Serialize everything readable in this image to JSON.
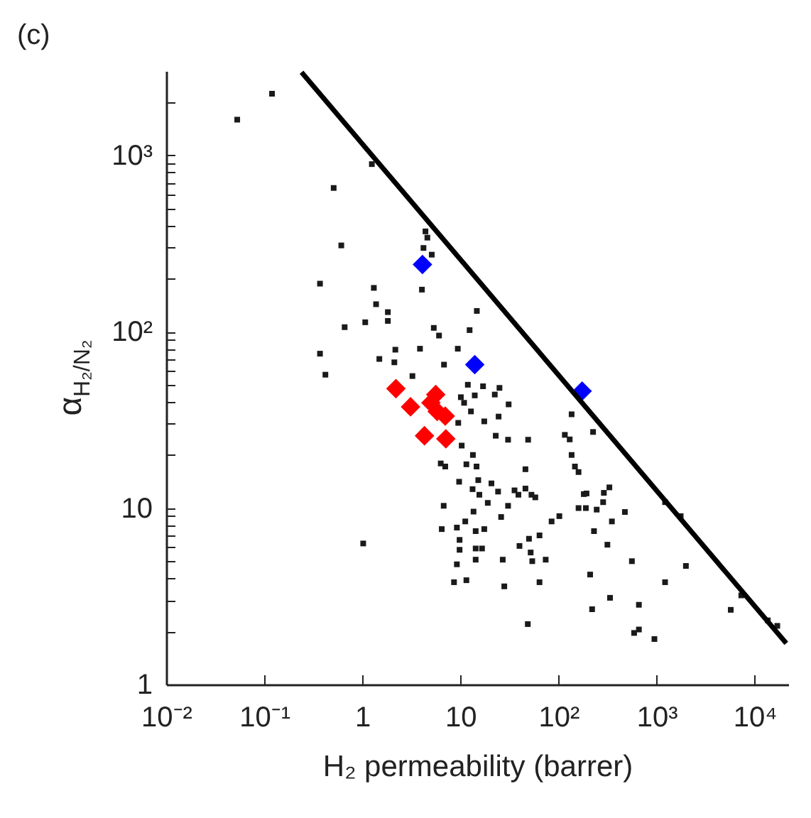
{
  "chart_data": {
    "type": "scatter",
    "title": "(c)",
    "xlabel": "H₂ permeability (barrer)",
    "ylabel": "α$_{H₂/N₂}$",
    "log": "xy",
    "grid": false,
    "xlim": [
      0.01,
      22000
    ],
    "ylim": [
      1,
      3000
    ],
    "xticks": [
      {
        "value": 0.01,
        "label": "10⁻²"
      },
      {
        "value": 0.1,
        "label": "10⁻¹"
      },
      1,
      10,
      {
        "value": 100,
        "label": "10²"
      },
      {
        "value": 1000,
        "label": "10³"
      },
      {
        "value": 10000,
        "label": "10⁴"
      }
    ],
    "yticks": [
      1,
      {
        "value": 2,
        "label": null
      },
      {
        "value": 3,
        "label": null
      },
      {
        "value": 4,
        "label": null
      },
      {
        "value": 5,
        "label": null
      },
      {
        "value": 6,
        "label": null
      },
      {
        "value": 7,
        "label": null
      },
      {
        "value": 8,
        "label": null
      },
      {
        "value": 9,
        "label": null
      },
      10,
      {
        "value": 20,
        "label": null
      },
      {
        "value": 30,
        "label": null
      },
      {
        "value": 40,
        "label": null
      },
      {
        "value": 50,
        "label": null
      },
      {
        "value": 60,
        "label": null
      },
      {
        "value": 70,
        "label": null
      },
      {
        "value": 80,
        "label": null
      },
      {
        "value": 90,
        "label": null
      },
      {
        "value": 100,
        "label": "10²"
      },
      {
        "value": 200,
        "label": null
      },
      {
        "value": 300,
        "label": null
      },
      {
        "value": 400,
        "label": null
      },
      {
        "value": 500,
        "label": null
      },
      {
        "value": 600,
        "label": null
      },
      {
        "value": 700,
        "label": null
      },
      {
        "value": 800,
        "label": null
      },
      {
        "value": 900,
        "label": null
      },
      {
        "value": 1000,
        "label": "10³"
      },
      {
        "value": 2000,
        "label": null
      }
    ],
    "series": [
      {
        "marker": "square",
        "color": "#1a1a1a",
        "x": [
          0.053,
          0.12,
          1.25,
          0.51,
          0.61,
          4.4,
          4.6,
          4.2,
          5.1,
          0.37,
          4.05,
          1.31,
          1.38,
          1.82,
          1.82,
          1.07,
          0.66,
          14.7,
          5.35,
          6.05,
          12.4,
          0.37,
          2.17,
          3.87,
          9.4,
          1.49,
          2.12,
          6.8,
          0.42,
          3.24,
          11.9,
          17,
          14,
          10.1,
          12.8,
          10.9,
          22.4,
          25,
          17.5,
          24.5,
          31,
          9.5,
          10.3,
          22.9,
          30.6,
          49,
          6.3,
          7.0,
          11.5,
          14.6,
          13.4,
          46,
          9.7,
          15.2,
          20.7,
          13.3,
          15.6,
          19,
          24.2,
          30.6,
          13.6,
          26,
          6.75,
          11.2,
          6.45,
          9.2,
          14.3,
          17.5,
          9.8,
          9.8,
          14.3,
          16.6,
          14.3,
          9.2,
          27,
          40,
          52,
          54,
          74,
          11.5,
          8.6,
          28,
          64,
          1.02,
          50,
          64,
          35.6,
          53,
          58,
          39,
          46,
          85,
          102,
          160,
          190,
          181,
          136,
          147,
          160,
          130,
          116,
          136,
          210,
          225,
          193,
          290,
          330,
          285,
          245,
          475,
          350,
          230,
          315,
          560,
          335,
          220,
          660,
          590,
          660,
          950,
          1220,
          1990,
          1220,
          1760,
          5700,
          7300,
          13600,
          17000,
          48.6
        ],
        "values": [
          1590,
          2230,
          890,
          652,
          308,
          370,
          341,
          298,
          273,
          187,
          173,
          177,
          143,
          129,
          115,
          113,
          106,
          131,
          105,
          95,
          102,
          75,
          79,
          80,
          80,
          70,
          67,
          65,
          57,
          56,
          50,
          49,
          43.5,
          42.5,
          35.3,
          39.5,
          44,
          48,
          31,
          33,
          38.7,
          30.4,
          22.6,
          25.7,
          24.4,
          24.4,
          17.9,
          17.2,
          17.7,
          17.2,
          20,
          16.6,
          14.1,
          14.4,
          13.8,
          12.8,
          11.9,
          10.7,
          12.4,
          10.3,
          9.55,
          8.9,
          10.3,
          8.4,
          7.6,
          7.75,
          7.4,
          7.6,
          6.6,
          5.8,
          5.9,
          5.9,
          5.1,
          4.8,
          5.1,
          6.1,
          5.6,
          5.0,
          5.1,
          3.9,
          3.8,
          3.6,
          3.8,
          6.3,
          6.7,
          7.0,
          12.6,
          11.9,
          11.5,
          11.9,
          12.9,
          8.4,
          9.0,
          10,
          10,
          12,
          20,
          17.2,
          16,
          24.5,
          26,
          34,
          4.2,
          27,
          12.1,
          12.2,
          13.1,
          10.8,
          9.8,
          9.5,
          8.4,
          7.4,
          6.2,
          5.0,
          3.1,
          2.67,
          2.83,
          1.96,
          2.05,
          1.81,
          3.8,
          4.7,
          10.8,
          9.0,
          2.65,
          3.2,
          2.31,
          2.15,
          2.2
        ]
      },
      {
        "marker": "diamond",
        "color": "#ff0000",
        "x": [
          2.2,
          3.1,
          5.6,
          5.0,
          5.8,
          7.0,
          4.3,
          7.1
        ],
        "values": [
          47.5,
          37.5,
          44,
          39.5,
          35.3,
          33.2,
          25.7,
          24.7
        ]
      },
      {
        "marker": "diamond",
        "color": "#0000ff",
        "x": [
          4.1,
          14,
          174
        ],
        "values": [
          240,
          65,
          46
        ]
      },
      {
        "type": "line",
        "color": "#000000",
        "line_style": "solid",
        "x": [
          0.24,
          21000
        ],
        "values": [
          2950,
          1.71
        ]
      }
    ]
  }
}
